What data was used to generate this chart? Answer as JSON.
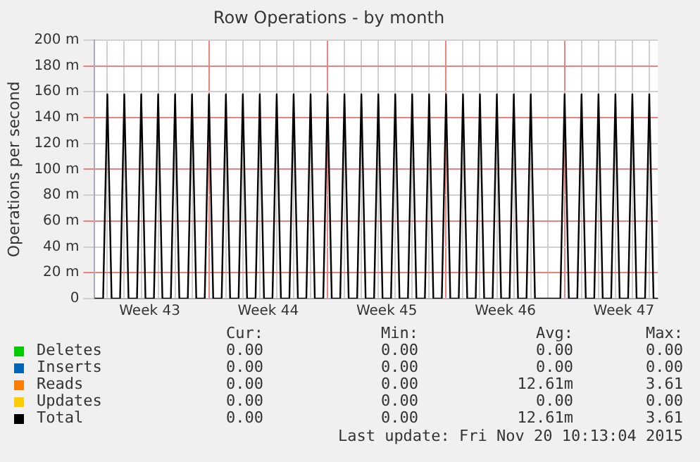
{
  "chart_data": {
    "type": "line",
    "title": "Row Operations - by month",
    "ylabel": "Operations per second",
    "categories": [
      null,
      null,
      null,
      null,
      null,
      null,
      null,
      null,
      null,
      null,
      null,
      null,
      null,
      "Week 43",
      null,
      null,
      null,
      null,
      null,
      null,
      null,
      null,
      null,
      null,
      null,
      null,
      null,
      null,
      null,
      null,
      null,
      null,
      null,
      null,
      null,
      null,
      null,
      null,
      null,
      null,
      null,
      "Week 44",
      null,
      null,
      null,
      null,
      null,
      null,
      null,
      null,
      null,
      null,
      null,
      null,
      null,
      null,
      null,
      null,
      null,
      null,
      null,
      null,
      null,
      null,
      null,
      null,
      null,
      null,
      null,
      "Week 45",
      null,
      null,
      null,
      null,
      null,
      null,
      null,
      null,
      null,
      null,
      null,
      null,
      null,
      null,
      null,
      null,
      null,
      null,
      null,
      null,
      null,
      null,
      null,
      null,
      null,
      null,
      null,
      "Week 46",
      null,
      null,
      null,
      null,
      null,
      null,
      null,
      null,
      null,
      null,
      null,
      null,
      null,
      null,
      null,
      null,
      null,
      null,
      null,
      null,
      null,
      null,
      null,
      null,
      null,
      null,
      null,
      "Week 47",
      null,
      null,
      null,
      null,
      null,
      null,
      null,
      null
    ],
    "ylim": [
      0,
      200
    ],
    "yticks": [
      {
        "value": 0,
        "label": "0"
      },
      {
        "value": 20,
        "label": "20 m"
      },
      {
        "value": 40,
        "label": "40 m"
      },
      {
        "value": 60,
        "label": "60 m"
      },
      {
        "value": 80,
        "label": "80 m"
      },
      {
        "value": 100,
        "label": "100 m"
      },
      {
        "value": 120,
        "label": "120 m"
      },
      {
        "value": 140,
        "label": "140 m"
      },
      {
        "value": 160,
        "label": "160 m"
      },
      {
        "value": 180,
        "label": "180 m"
      },
      {
        "value": 200,
        "label": "200 m"
      }
    ],
    "grid": true,
    "legend": "bottom",
    "marker": "none",
    "line_style": "solid",
    "series": [
      {
        "name": "Deletes",
        "color": "#00cc00",
        "values": [
          null,
          null,
          null,
          null,
          null,
          null,
          null,
          null,
          null,
          null,
          null,
          null,
          null,
          null,
          null,
          null,
          null,
          null,
          null,
          null,
          null,
          null,
          null,
          null,
          null,
          null,
          null,
          null,
          null,
          null,
          null,
          null,
          null,
          null,
          null,
          null,
          null,
          null,
          null,
          null,
          null,
          null,
          null,
          null,
          null,
          null,
          null,
          null,
          null,
          null,
          null,
          null,
          null,
          null,
          null,
          null,
          null,
          null,
          null,
          null,
          null,
          null,
          null,
          null,
          null,
          null,
          null,
          null,
          null,
          null,
          null,
          null,
          null,
          null,
          null,
          null,
          null,
          null,
          null,
          null,
          null,
          null,
          null,
          null,
          null,
          null,
          null,
          null,
          null,
          null,
          null,
          null,
          null,
          null,
          null,
          null,
          null,
          null,
          null,
          null,
          null,
          null,
          null,
          null,
          null,
          null,
          null,
          null,
          null,
          null,
          null,
          null,
          null,
          null,
          null,
          null,
          null,
          null,
          null,
          null,
          null,
          null,
          null,
          null,
          null,
          null,
          null,
          null,
          null,
          null,
          null,
          null,
          null,
          null
        ]
      },
      {
        "name": "Inserts",
        "color": "#0066b3",
        "values": [
          null,
          null,
          null,
          null,
          null,
          null,
          null,
          null,
          null,
          null,
          null,
          null,
          null,
          null,
          null,
          null,
          null,
          null,
          null,
          null,
          null,
          null,
          null,
          null,
          null,
          null,
          null,
          null,
          null,
          null,
          null,
          null,
          null,
          null,
          null,
          null,
          null,
          null,
          null,
          null,
          null,
          null,
          null,
          null,
          null,
          null,
          null,
          null,
          null,
          null,
          null,
          null,
          null,
          null,
          null,
          null,
          null,
          null,
          null,
          null,
          null,
          null,
          null,
          null,
          null,
          null,
          null,
          null,
          null,
          null,
          null,
          null,
          null,
          null,
          null,
          null,
          null,
          null,
          null,
          null,
          null,
          null,
          null,
          null,
          null,
          null,
          null,
          null,
          null,
          null,
          null,
          null,
          null,
          null,
          null,
          null,
          null,
          null,
          null,
          null,
          null,
          null,
          null,
          null,
          null,
          null,
          null,
          null,
          null,
          null,
          null,
          null,
          null,
          null,
          null,
          null,
          null,
          null,
          null,
          null,
          null,
          null,
          null,
          null,
          null,
          null,
          null,
          null,
          null,
          null,
          null,
          null,
          null,
          null
        ]
      },
      {
        "name": "Reads",
        "color": "#ff8000",
        "values": [
          null,
          null,
          null,
          null,
          null,
          null,
          null,
          null,
          null,
          null,
          null,
          null,
          null,
          null,
          null,
          null,
          null,
          null,
          null,
          null,
          null,
          null,
          null,
          null,
          null,
          null,
          null,
          null,
          null,
          null,
          null,
          null,
          null,
          null,
          null,
          null,
          null,
          null,
          null,
          null,
          null,
          null,
          null,
          null,
          null,
          null,
          null,
          null,
          null,
          null,
          null,
          null,
          null,
          null,
          null,
          null,
          null,
          null,
          null,
          null,
          null,
          null,
          null,
          null,
          null,
          null,
          null,
          null,
          null,
          null,
          null,
          null,
          null,
          null,
          null,
          null,
          null,
          null,
          null,
          null,
          null,
          null,
          null,
          null,
          null,
          null,
          null,
          null,
          null,
          null,
          null,
          null,
          null,
          null,
          null,
          null,
          null,
          null,
          null,
          null,
          null,
          null,
          null,
          null,
          null,
          null,
          null,
          null,
          null,
          null,
          null,
          null,
          null,
          null,
          null,
          null,
          null,
          null,
          null,
          null,
          null,
          null,
          null,
          null,
          null,
          null,
          null,
          null,
          null,
          null,
          null,
          null,
          null,
          null
        ]
      },
      {
        "name": "Updates",
        "color": "#ffcc00",
        "values": [
          null,
          null,
          null,
          null,
          null,
          null,
          null,
          null,
          null,
          null,
          null,
          null,
          null,
          null,
          null,
          null,
          null,
          null,
          null,
          null,
          null,
          null,
          null,
          null,
          null,
          null,
          null,
          null,
          null,
          null,
          null,
          null,
          null,
          null,
          null,
          null,
          null,
          null,
          null,
          null,
          null,
          null,
          null,
          null,
          null,
          null,
          null,
          null,
          null,
          null,
          null,
          null,
          null,
          null,
          null,
          null,
          null,
          null,
          null,
          null,
          null,
          null,
          null,
          null,
          null,
          null,
          null,
          null,
          null,
          null,
          null,
          null,
          null,
          null,
          null,
          null,
          null,
          null,
          null,
          null,
          null,
          null,
          null,
          null,
          null,
          null,
          null,
          null,
          null,
          null,
          null,
          null,
          null,
          null,
          null,
          null,
          null,
          null,
          null,
          null,
          null,
          null,
          null,
          null,
          null,
          null,
          null,
          null,
          null,
          null,
          null,
          null,
          null,
          null,
          null,
          null,
          null,
          null,
          null,
          null,
          null,
          null,
          null,
          null,
          null,
          null,
          null,
          null,
          null,
          null,
          null,
          null,
          null,
          null
        ]
      },
      {
        "name": "Total",
        "color": "#000000",
        "values": [
          0,
          0,
          0,
          158,
          0,
          0,
          0,
          158,
          0,
          0,
          0,
          158,
          0,
          0,
          0,
          158,
          0,
          0,
          0,
          158,
          0,
          0,
          0,
          158,
          0,
          0,
          0,
          158,
          0,
          0,
          0,
          158,
          0,
          0,
          0,
          158,
          0,
          0,
          0,
          158,
          0,
          0,
          0,
          158,
          0,
          0,
          0,
          158,
          0,
          0,
          0,
          158,
          0,
          0,
          0,
          158,
          0,
          0,
          0,
          158,
          0,
          0,
          0,
          158,
          0,
          0,
          0,
          158,
          0,
          0,
          0,
          158,
          0,
          0,
          0,
          158,
          0,
          0,
          0,
          158,
          0,
          0,
          0,
          158,
          0,
          0,
          0,
          158,
          0,
          0,
          0,
          158,
          0,
          0,
          0,
          158,
          0,
          0,
          0,
          158,
          0,
          0,
          0,
          158,
          0,
          0,
          0,
          0,
          0,
          0,
          0,
          158,
          0,
          0,
          0,
          158,
          0,
          0,
          0,
          158,
          0,
          0,
          0,
          158,
          0,
          0,
          0,
          158,
          0,
          0,
          0,
          158,
          0,
          0
        ]
      }
    ],
    "annotations": [
      "Cur:",
      "Min:",
      "Avg:",
      "Max:",
      "0.00",
      "0.00",
      "0.00",
      "0.00",
      "0.00",
      "0.00",
      "0.00",
      "0.00",
      "0.00",
      "0.00",
      "12.61m",
      "3.61",
      "0.00",
      "0.00",
      "0.00",
      "0.00",
      "0.00",
      "0.00",
      "12.61m",
      "3.61",
      "Last update: Fri Nov 20 10:13:04 2015"
    ]
  }
}
